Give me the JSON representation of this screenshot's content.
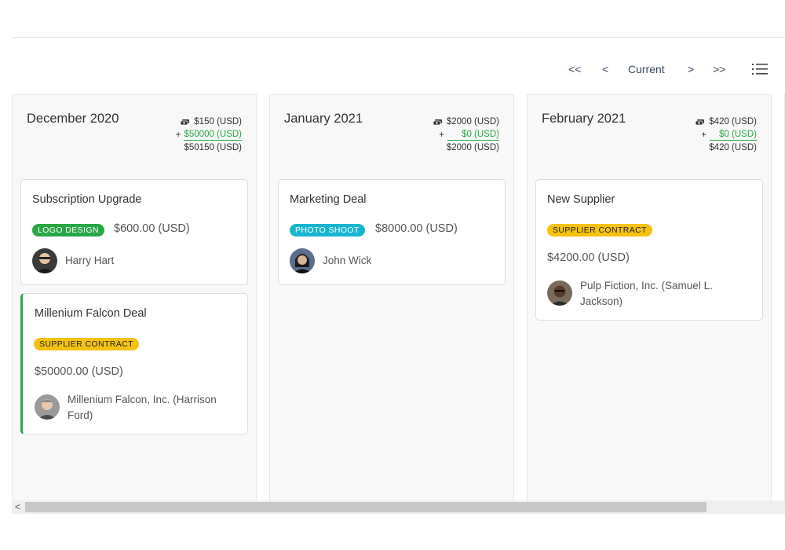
{
  "pager": {
    "first": "<<",
    "prev": "<",
    "current": "Current",
    "next": ">",
    "last": ">>"
  },
  "columns": [
    {
      "title": "December 2020",
      "summary": {
        "top": "$150 (USD)",
        "plus": "+",
        "added": "$50000 (USD)",
        "total": "$50150 (USD)"
      },
      "cards": [
        {
          "title": "Subscription Upgrade",
          "tag": "LOGO DESIGN",
          "amount": "$600.00 (USD)",
          "contact": "Harry Hart"
        },
        {
          "title": "Millenium Falcon Deal",
          "tag": "SUPPLIER CONTRACT",
          "amount": "$50000.00 (USD)",
          "contact": "Millenium Falcon, Inc. (Harrison Ford)"
        }
      ]
    },
    {
      "title": "January 2021",
      "summary": {
        "top": "$2000 (USD)",
        "plus": "+",
        "added": "$0 (USD)",
        "total": "$2000 (USD)"
      },
      "cards": [
        {
          "title": "Marketing Deal",
          "tag": "PHOTO SHOOT",
          "amount": "$8000.00 (USD)",
          "contact": "John Wick"
        }
      ]
    },
    {
      "title": "February 2021",
      "summary": {
        "top": "$420 (USD)",
        "plus": "+",
        "added": "$0 (USD)",
        "total": "$420 (USD)"
      },
      "cards": [
        {
          "title": "New Supplier",
          "tag": "SUPPLIER CONTRACT",
          "amount": "$4200.00 (USD)",
          "contact": "Pulp Fiction, Inc. (Samuel L. Jackson)"
        }
      ]
    }
  ],
  "scrollbar": {
    "left_arrow": "<"
  },
  "colors": {
    "accent_green": "#28a745",
    "tag_cyan": "#17b5cf",
    "tag_yellow": "#f5c211"
  }
}
